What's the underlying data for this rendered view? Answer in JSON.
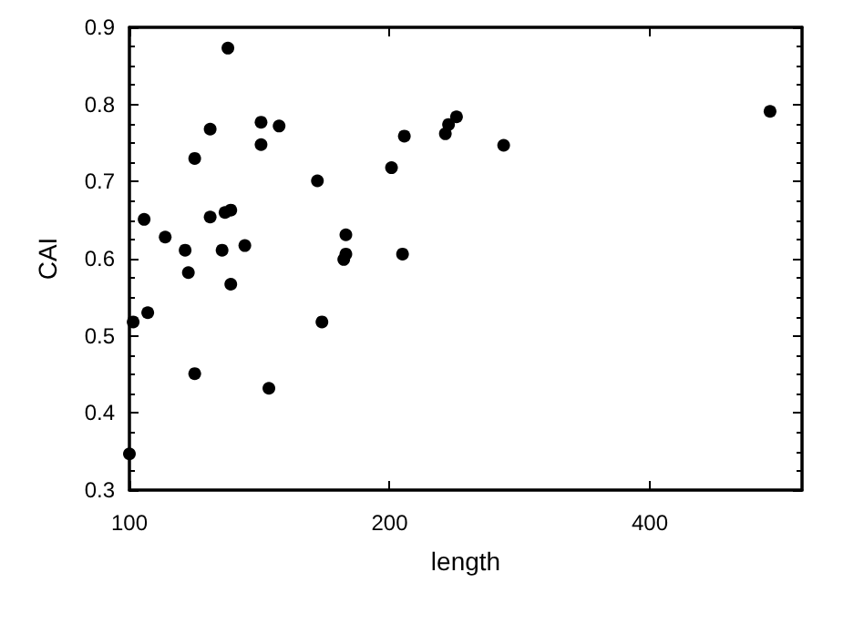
{
  "chart_data": {
    "type": "scatter",
    "xlabel": "length",
    "ylabel": "CAI",
    "log": "x",
    "xlim": [
      100,
      600
    ],
    "xticks": [
      100,
      200,
      400
    ],
    "ylim": [
      0.3,
      0.9
    ],
    "yticks": [
      0.3,
      0.4,
      0.5,
      0.6,
      0.7,
      0.8,
      0.9
    ],
    "grid": false,
    "marker": "circle",
    "series": [
      {
        "color": "#000000",
        "x": [
          130,
          142,
          149,
          124,
          142,
          119,
          165,
          104,
          124,
          129,
          131,
          110,
          178,
          116,
          128,
          136,
          177,
          178,
          117,
          131,
          105,
          101,
          167,
          119,
          145,
          100,
          201,
          208,
          207,
          232,
          234,
          239,
          271,
          551
        ],
        "values": [
          0.873,
          0.777,
          0.772,
          0.768,
          0.748,
          0.73,
          0.701,
          0.651,
          0.654,
          0.66,
          0.663,
          0.628,
          0.631,
          0.611,
          0.611,
          0.617,
          0.599,
          0.606,
          0.582,
          0.567,
          0.53,
          0.518,
          0.518,
          0.451,
          0.432,
          0.347,
          0.718,
          0.759,
          0.606,
          0.762,
          0.774,
          0.784,
          0.747,
          0.791
        ]
      }
    ]
  }
}
